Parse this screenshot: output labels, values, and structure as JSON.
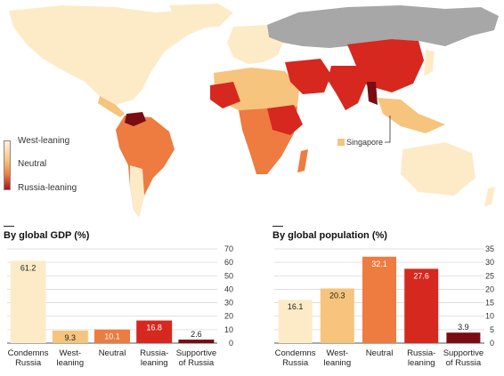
{
  "map": {
    "legend": {
      "top": "West-leaning",
      "middle": "Neutral",
      "bottom": "Russia-leaning"
    },
    "callout": "Singapore"
  },
  "colors": {
    "condemns": "#fdebc8",
    "west": "#f6c47c",
    "neutral": "#ee7b40",
    "russia_leaning": "#d6281f",
    "supportive": "#7a0d12",
    "russia_region": "#a7a7a7",
    "grid": "#d8d8d8"
  },
  "chart_data": [
    {
      "type": "bar",
      "title": "By global GDP (%)",
      "categories": [
        "Condemns\nRussia",
        "West-\nleaning",
        "Neutral",
        "Russia-\nleaning",
        "Supportive\nof Russia"
      ],
      "values": [
        61.2,
        9.3,
        10.1,
        16.8,
        2.6
      ],
      "ylim": [
        0,
        70
      ],
      "yticks": [
        0,
        10,
        20,
        30,
        40,
        50,
        60,
        70
      ],
      "grid": true
    },
    {
      "type": "bar",
      "title": "By global population (%)",
      "categories": [
        "Condemns\nRussia",
        "West-\nleaning",
        "Neutral",
        "Russia-\nleaning",
        "Supportive\nof Russia"
      ],
      "values": [
        16.1,
        20.3,
        32.1,
        27.6,
        3.9
      ],
      "ylim": [
        0,
        35
      ],
      "yticks": [
        0,
        5,
        10,
        15,
        20,
        25,
        30,
        35
      ],
      "grid": true
    }
  ]
}
